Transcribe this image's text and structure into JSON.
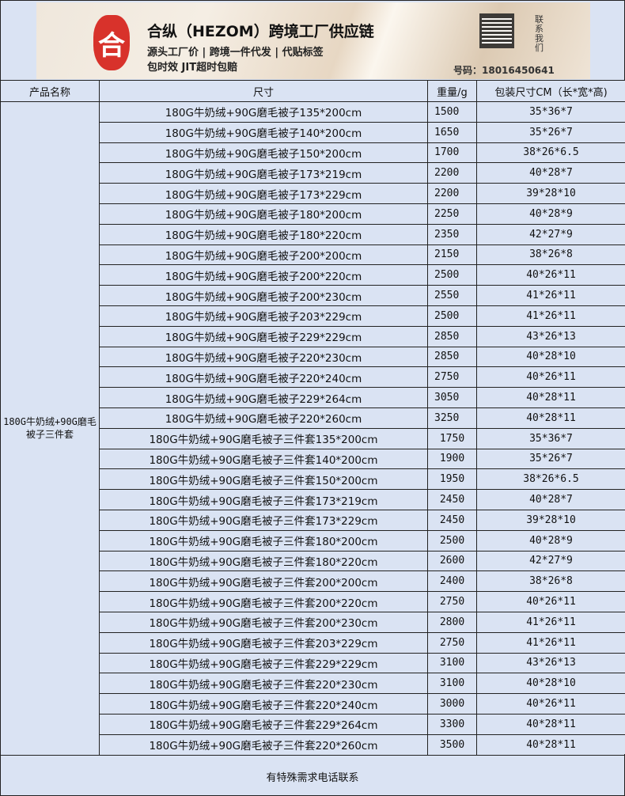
{
  "banner": {
    "logo_text": "合",
    "title": "合纵（HEZOM）跨境工厂供应链",
    "line1": "源头工厂价 | 跨境一件代发 | 代贴标签",
    "line2": "包时效 JIT超时包赔",
    "contact": "联系我们",
    "phone": "号码：18016450641"
  },
  "table": {
    "headers": [
      "产品名称",
      "尺寸",
      "重量/g",
      "包装尺寸CM（长*宽*高)"
    ],
    "product_name": "180G牛奶绒+90G磨毛被子三件套",
    "rows": [
      [
        "180G牛奶绒+90G磨毛被子135*200cm",
        "1500",
        "35*36*7"
      ],
      [
        "180G牛奶绒+90G磨毛被子140*200cm",
        "1650",
        "35*26*7"
      ],
      [
        "180G牛奶绒+90G磨毛被子150*200cm",
        "1700",
        "38*26*6.5"
      ],
      [
        "180G牛奶绒+90G磨毛被子173*219cm",
        "2200",
        "40*28*7"
      ],
      [
        "180G牛奶绒+90G磨毛被子173*229cm",
        "2200",
        "39*28*10"
      ],
      [
        "180G牛奶绒+90G磨毛被子180*200cm",
        "2250",
        "40*28*9"
      ],
      [
        "180G牛奶绒+90G磨毛被子180*220cm",
        "2350",
        "42*27*9"
      ],
      [
        "180G牛奶绒+90G磨毛被子200*200cm",
        "2150",
        "38*26*8"
      ],
      [
        "180G牛奶绒+90G磨毛被子200*220cm",
        "2500",
        "40*26*11"
      ],
      [
        "180G牛奶绒+90G磨毛被子200*230cm",
        "2550",
        "41*26*11"
      ],
      [
        "180G牛奶绒+90G磨毛被子203*229cm",
        "2500",
        "41*26*11"
      ],
      [
        "180G牛奶绒+90G磨毛被子229*229cm",
        "2850",
        "43*26*13"
      ],
      [
        "180G牛奶绒+90G磨毛被子220*230cm",
        "2850",
        "40*28*10"
      ],
      [
        "180G牛奶绒+90G磨毛被子220*240cm",
        "2750",
        "40*26*11"
      ],
      [
        "180G牛奶绒+90G磨毛被子229*264cm",
        "3050",
        "40*28*11"
      ],
      [
        "180G牛奶绒+90G磨毛被子220*260cm",
        "3250",
        "40*28*11"
      ],
      [
        "180G牛奶绒+90G磨毛被子三件套135*200cm",
        "1750",
        "35*36*7"
      ],
      [
        "180G牛奶绒+90G磨毛被子三件套140*200cm",
        "1900",
        "35*26*7"
      ],
      [
        "180G牛奶绒+90G磨毛被子三件套150*200cm",
        "1950",
        "38*26*6.5"
      ],
      [
        "180G牛奶绒+90G磨毛被子三件套173*219cm",
        "2450",
        "40*28*7"
      ],
      [
        "180G牛奶绒+90G磨毛被子三件套173*229cm",
        "2450",
        "39*28*10"
      ],
      [
        "180G牛奶绒+90G磨毛被子三件套180*200cm",
        "2500",
        "40*28*9"
      ],
      [
        "180G牛奶绒+90G磨毛被子三件套180*220cm",
        "2600",
        "42*27*9"
      ],
      [
        "180G牛奶绒+90G磨毛被子三件套200*200cm",
        "2400",
        "38*26*8"
      ],
      [
        "180G牛奶绒+90G磨毛被子三件套200*220cm",
        "2750",
        "40*26*11"
      ],
      [
        "180G牛奶绒+90G磨毛被子三件套200*230cm",
        "2800",
        "41*26*11"
      ],
      [
        "180G牛奶绒+90G磨毛被子三件套203*229cm",
        "2750",
        "41*26*11"
      ],
      [
        "180G牛奶绒+90G磨毛被子三件套229*229cm",
        "3100",
        "43*26*13"
      ],
      [
        "180G牛奶绒+90G磨毛被子三件套220*230cm",
        "3100",
        "40*28*10"
      ],
      [
        "180G牛奶绒+90G磨毛被子三件套220*240cm",
        "3000",
        "40*26*11"
      ],
      [
        "180G牛奶绒+90G磨毛被子三件套229*264cm",
        "3300",
        "40*28*11"
      ],
      [
        "180G牛奶绒+90G磨毛被子三件套220*260cm",
        "3500",
        "40*28*11"
      ]
    ]
  },
  "footer": "有特殊需求电话联系"
}
